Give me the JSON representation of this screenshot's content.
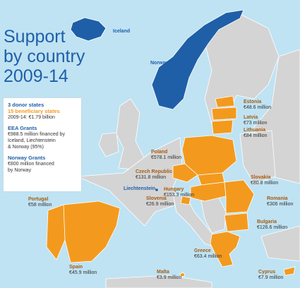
{
  "title": {
    "line1": "Support",
    "line2": "by country",
    "line3": "2009-14"
  },
  "legend": {
    "donor_states": "3 donor states",
    "beneficiary_states": "15 beneficiary states",
    "total": "2009-14: €1.79 billion",
    "eea_title": "EEA Grants",
    "eea_text_1": "€988.5 million financed by",
    "eea_text_2": "Iceland, Liechtenstein",
    "eea_text_3": "& Norway (95%)",
    "norway_title": "Norway Grants",
    "norway_text_1": "€800 million financed",
    "norway_text_2": "by Norway"
  },
  "colors": {
    "donor": "#1f5fa8",
    "beneficiary": "#f39a1e",
    "other": "#d4d4d4",
    "sea": "#bfe3f3"
  },
  "donors": [
    {
      "name": "Iceland"
    },
    {
      "name": "Norway"
    },
    {
      "name": "Liechtenstein"
    }
  ],
  "countries": [
    {
      "name": "Estonia",
      "value": "€48.6 million"
    },
    {
      "name": "Latvia",
      "value": "€73 million"
    },
    {
      "name": "Lithuania",
      "value": "€84 million"
    },
    {
      "name": "Poland",
      "value": "€578.1 million"
    },
    {
      "name": "Czech Republic",
      "value": "€131.8 million"
    },
    {
      "name": "Slovakia",
      "value": "€80.8 million"
    },
    {
      "name": "Hungary",
      "value": "€153.3 million"
    },
    {
      "name": "Slovenia",
      "value": "€26.9 million"
    },
    {
      "name": "Romania",
      "value": "€306 million"
    },
    {
      "name": "Bulgaria",
      "value": "€126.6 million"
    },
    {
      "name": "Portugal",
      "value": "€58 million"
    },
    {
      "name": "Spain",
      "value": "€45.9 million"
    },
    {
      "name": "Greece",
      "value": "€63.4 million"
    },
    {
      "name": "Malta",
      "value": "€3.9 million"
    },
    {
      "name": "Cyprus",
      "value": "€7.9 million"
    }
  ]
}
